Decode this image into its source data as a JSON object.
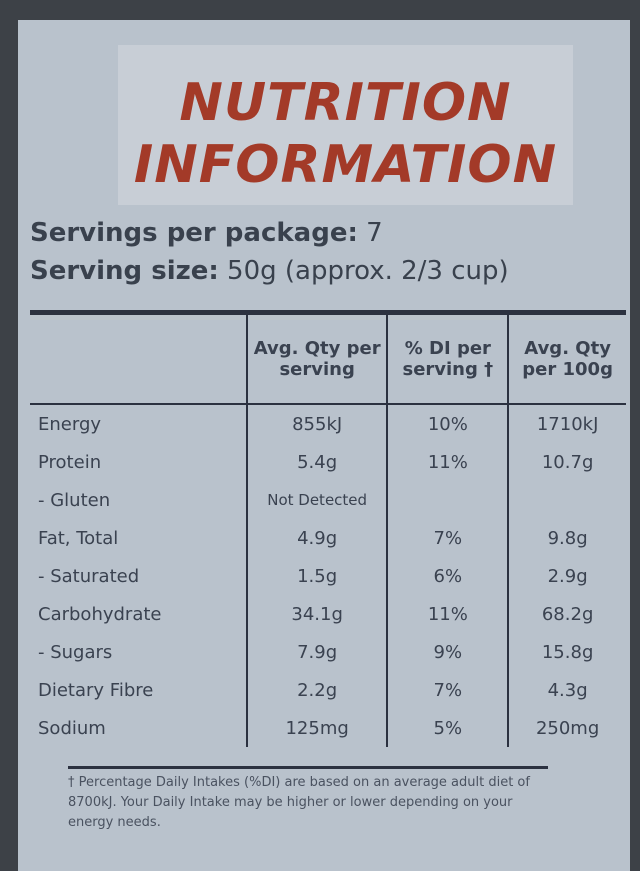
{
  "title": [
    "NUTRITION",
    "INFORMATION"
  ],
  "servings": {
    "label": "Servings per package:",
    "value": "7"
  },
  "serving_size": {
    "label": "Serving size:",
    "value": "50g (approx. 2/3 cup)"
  },
  "table": {
    "header": [
      "Avg. Qty per serving",
      "% DI per serving †",
      "Avg. Qty per 100g"
    ],
    "rows": [
      {
        "name": "Energy",
        "per_serving": "855kJ",
        "di": "10%",
        "per_100g": "1710kJ"
      },
      {
        "name": "Protein",
        "per_serving": "5.4g",
        "di": "11%",
        "per_100g": "10.7g"
      },
      {
        "name": "- Gluten",
        "per_serving": "Not Detected"
      },
      {
        "name": "Fat, Total",
        "per_serving": "4.9g",
        "di": "7%",
        "per_100g": "9.8g"
      },
      {
        "name": "- Saturated",
        "per_serving": "1.5g",
        "di": "6%",
        "per_100g": "2.9g"
      },
      {
        "name": "Carbohydrate",
        "per_serving": "34.1g",
        "di": "11%",
        "per_100g": "68.2g"
      },
      {
        "name": "- Sugars",
        "per_serving": "7.9g",
        "di": "9%",
        "per_100g": "15.8g"
      },
      {
        "name": "Dietary Fibre",
        "per_serving": "2.2g",
        "di": "7%",
        "per_100g": "4.3g"
      },
      {
        "name": "Sodium",
        "per_serving": "125mg",
        "di": "5%",
        "per_100g": "250mg"
      }
    ]
  },
  "footnote": "† Percentage Daily Intakes (%DI) are based on an average adult diet of 8700kJ. Your Daily Intake may be higher or lower depending on your energy needs."
}
